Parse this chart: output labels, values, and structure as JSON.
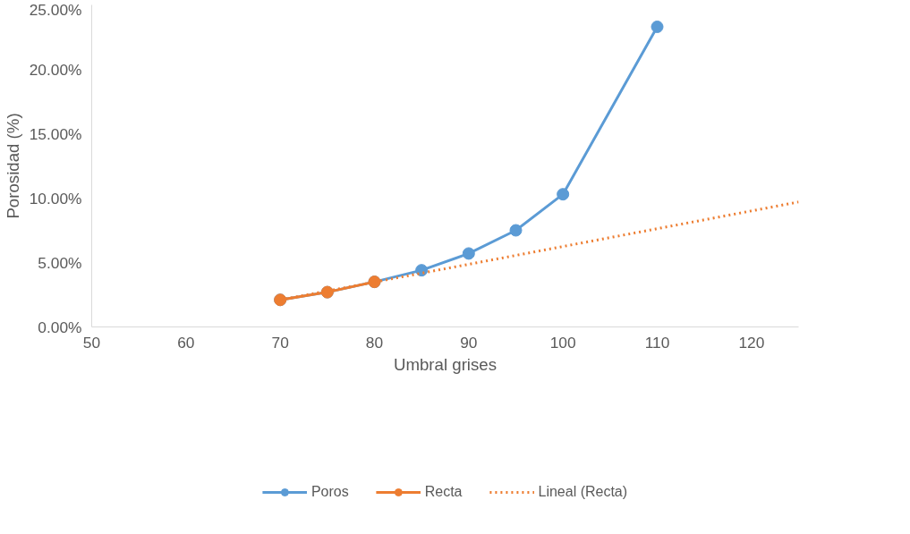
{
  "chart_data": {
    "type": "line",
    "xlabel": "Umbral grises",
    "ylabel": "Porosidad (%)",
    "xlim": [
      50,
      125
    ],
    "xticks": [
      50,
      60,
      70,
      80,
      90,
      100,
      110,
      120
    ],
    "ylim": [
      0,
      25
    ],
    "yticks": [
      {
        "value": 0,
        "label": "0.00%"
      },
      {
        "value": 5,
        "label": "5.00%"
      },
      {
        "value": 10,
        "label": "10.00%"
      },
      {
        "value": 15,
        "label": "15.00%"
      },
      {
        "value": 20,
        "label": "20.00%"
      },
      {
        "value": 25,
        "label": "25.00%"
      }
    ],
    "grid": false,
    "legend": "bottom",
    "series": [
      {
        "name": "Poros",
        "color": "#5b9bd5",
        "marker": "circle",
        "line_style": "solid",
        "x": [
          70,
          75,
          80,
          85,
          90,
          95,
          100,
          110
        ],
        "values": [
          2.1,
          2.7,
          3.5,
          4.4,
          5.7,
          7.5,
          10.3,
          23.3
        ]
      },
      {
        "name": "Recta",
        "color": "#ed7d31",
        "marker": "circle",
        "line_style": "solid",
        "x": [
          70,
          75,
          80
        ],
        "values": [
          2.1,
          2.7,
          3.5
        ]
      },
      {
        "name": "Lineal (Recta)",
        "color": "#ed7d31",
        "marker": "none",
        "line_style": "dotted",
        "x": [
          70,
          125
        ],
        "values": [
          2.1,
          9.7
        ]
      }
    ]
  }
}
